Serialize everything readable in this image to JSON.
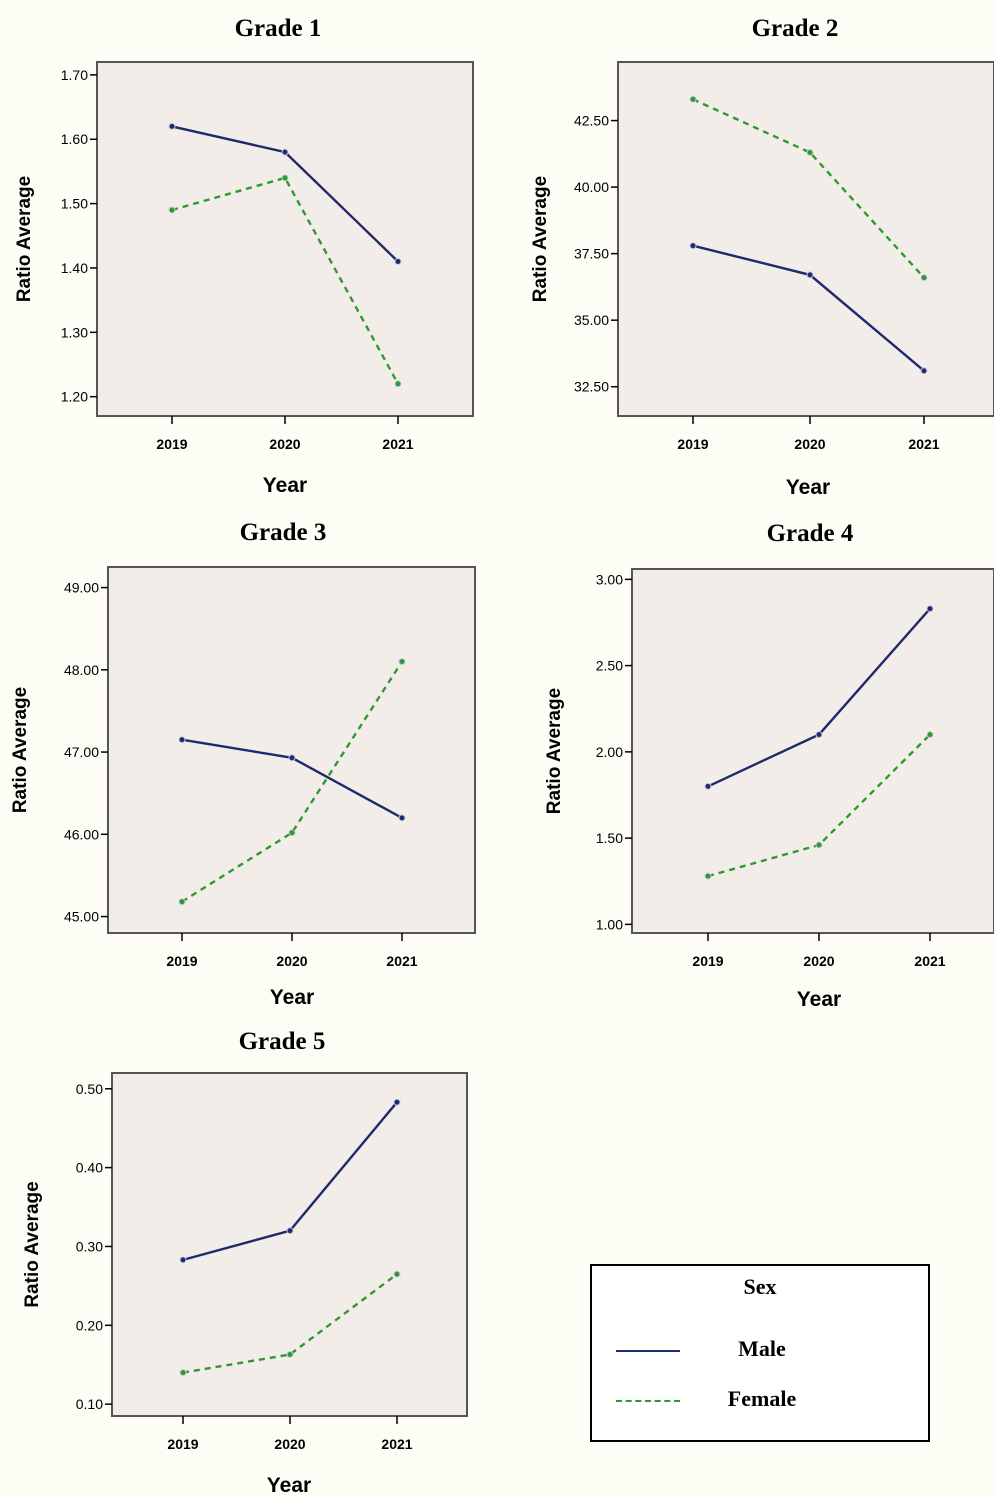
{
  "colors": {
    "male": "#1f2a6e",
    "female": "#2e9a2e",
    "plot_bg": "#f3ede9"
  },
  "legend": {
    "title": "Sex",
    "items": [
      {
        "label": "Male",
        "style": "solid",
        "color": "#1f2a6e"
      },
      {
        "label": "Female",
        "style": "dashed",
        "color": "#2e9a2e"
      }
    ]
  },
  "chart_data": [
    {
      "type": "line",
      "title": "Grade 1",
      "xlabel": "Year",
      "ylabel": "Ratio Average",
      "categories": [
        "2019",
        "2020",
        "2021"
      ],
      "yticks": [
        "1.20",
        "1.30",
        "1.40",
        "1.50",
        "1.60",
        "1.70"
      ],
      "ylim": [
        1.17,
        1.72
      ],
      "series": [
        {
          "name": "Male",
          "values": [
            1.62,
            1.58,
            1.41
          ]
        },
        {
          "name": "Female",
          "values": [
            1.49,
            1.54,
            1.22
          ]
        }
      ]
    },
    {
      "type": "line",
      "title": "Grade 2",
      "xlabel": "Year",
      "ylabel": "Ratio Average",
      "categories": [
        "2019",
        "2020",
        "2021"
      ],
      "yticks": [
        "32.50",
        "35.00",
        "37.50",
        "40.00",
        "42.50"
      ],
      "ylim": [
        31.4,
        44.7
      ],
      "series": [
        {
          "name": "Male",
          "values": [
            37.8,
            36.7,
            33.1
          ]
        },
        {
          "name": "Female",
          "values": [
            43.3,
            41.3,
            36.6
          ]
        }
      ]
    },
    {
      "type": "line",
      "title": "Grade 3",
      "xlabel": "Year",
      "ylabel": "Ratio Average",
      "categories": [
        "2019",
        "2020",
        "2021"
      ],
      "yticks": [
        "45.00",
        "46.00",
        "47.00",
        "48.00",
        "49.00"
      ],
      "ylim": [
        44.8,
        49.25
      ],
      "series": [
        {
          "name": "Male",
          "values": [
            47.15,
            46.93,
            46.2
          ]
        },
        {
          "name": "Female",
          "values": [
            45.18,
            46.02,
            48.1
          ]
        }
      ]
    },
    {
      "type": "line",
      "title": "Grade 4",
      "xlabel": "Year",
      "ylabel": "Ratio Average",
      "categories": [
        "2019",
        "2020",
        "2021"
      ],
      "yticks": [
        "1.00",
        "1.50",
        "2.00",
        "2.50",
        "3.00"
      ],
      "ylim": [
        0.95,
        3.06
      ],
      "series": [
        {
          "name": "Male",
          "values": [
            1.8,
            2.1,
            2.83
          ]
        },
        {
          "name": "Female",
          "values": [
            1.28,
            1.46,
            2.1
          ]
        }
      ]
    },
    {
      "type": "line",
      "title": "Grade 5",
      "xlabel": "Year",
      "ylabel": "Ratio Average",
      "categories": [
        "2019",
        "2020",
        "2021"
      ],
      "yticks": [
        "0.10",
        "0.20",
        "0.30",
        "0.40",
        "0.50"
      ],
      "ylim": [
        0.085,
        0.52
      ],
      "series": [
        {
          "name": "Male",
          "values": [
            0.283,
            0.32,
            0.483
          ]
        },
        {
          "name": "Female",
          "values": [
            0.14,
            0.163,
            0.265
          ]
        }
      ]
    }
  ]
}
